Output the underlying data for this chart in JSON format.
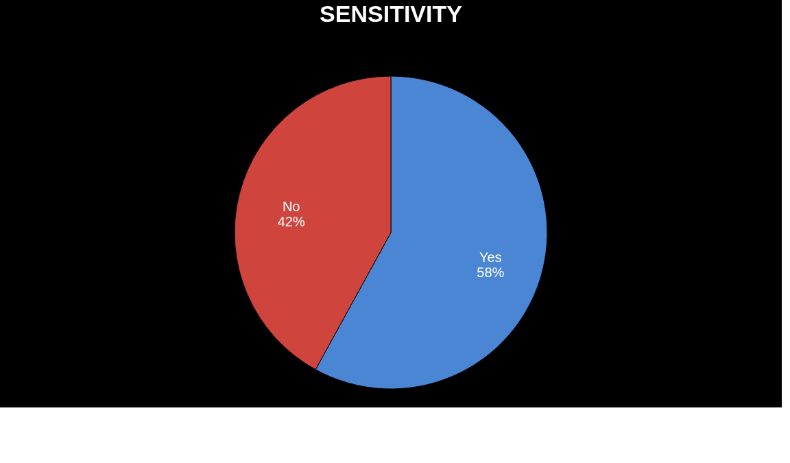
{
  "chart_data": {
    "type": "pie",
    "title": "SENSITIVITY",
    "categories": [
      "Yes",
      "No"
    ],
    "values": [
      58,
      42
    ],
    "colors": [
      "#4a86d4",
      "#d0443e"
    ],
    "value_labels": [
      "58%",
      "42%"
    ]
  }
}
